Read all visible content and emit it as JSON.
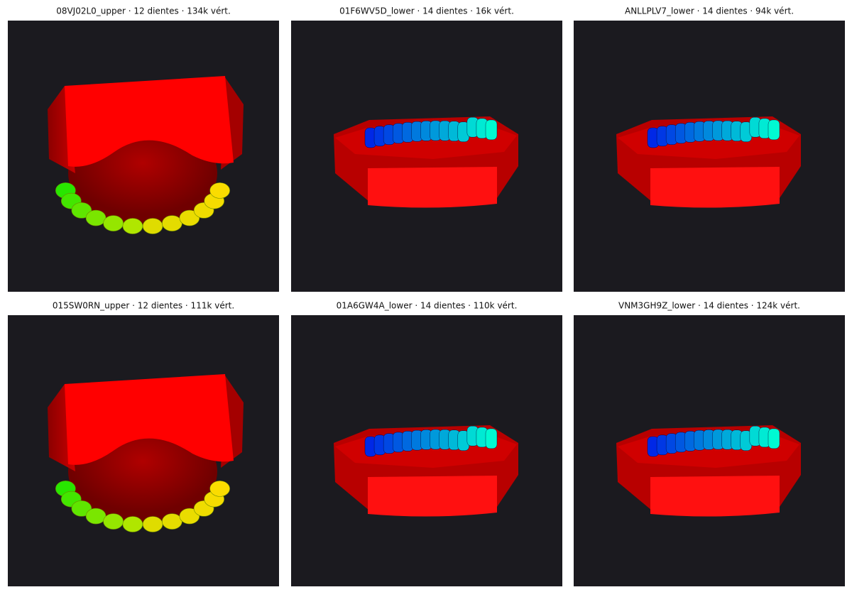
{
  "panels": [
    {
      "title": "08VJ02L0_upper · 12 dientes · 134k vért."
    },
    {
      "title": "01F6WV5D_lower · 14 dientes · 16k vért."
    },
    {
      "title": "ANLLPLV7_lower · 14 dientes · 94k vért."
    },
    {
      "title": "015SW0RN_upper · 12 dientes · 111k vért."
    },
    {
      "title": "01A6GW4A_lower · 14 dientes · 110k vért."
    },
    {
      "title": "VNM3GH9Z_lower · 14 dientes · 124k vért."
    }
  ]
}
